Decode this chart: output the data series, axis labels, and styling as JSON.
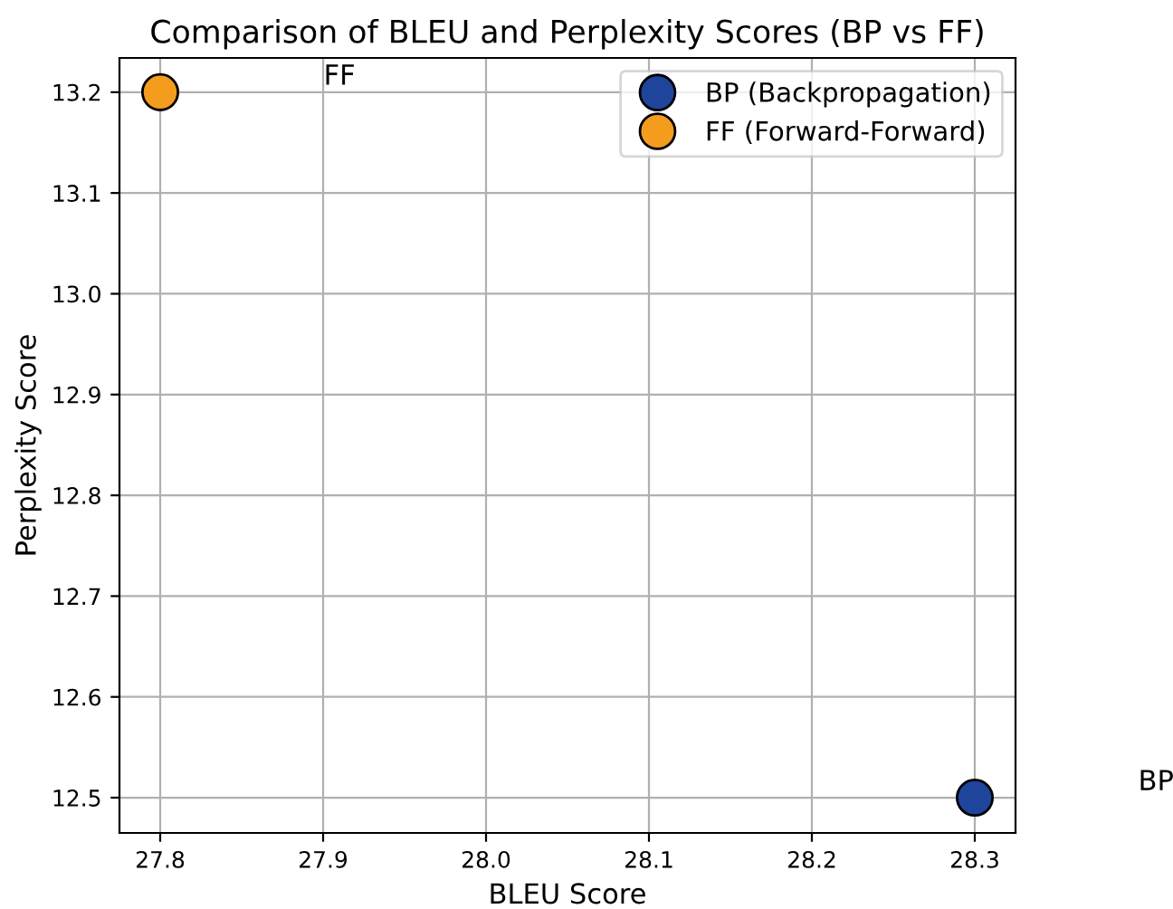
{
  "chart_data": {
    "type": "scatter",
    "title": "Comparison of BLEU and Perplexity Scores (BP vs FF)",
    "xlabel": "BLEU Score",
    "ylabel": "Perplexity Score",
    "series": [
      {
        "name": "BP (Backpropagation)",
        "color": "#1f449c",
        "x": [
          28.3
        ],
        "values": [
          12.5
        ]
      },
      {
        "name": "FF (Forward-Forward)",
        "color": "#f39c1d",
        "x": [
          27.8
        ],
        "values": [
          13.2
        ]
      }
    ],
    "annotations": [
      "BP",
      "FF"
    ],
    "xlim": [
      27.775,
      28.325
    ],
    "xticks": [
      {
        "value": 27.8,
        "label": "27.8"
      },
      {
        "value": 27.9,
        "label": "27.9"
      },
      {
        "value": 28.0,
        "label": "28.0"
      },
      {
        "value": 28.1,
        "label": "28.1"
      },
      {
        "value": 28.2,
        "label": "28.2"
      },
      {
        "value": 28.3,
        "label": "28.3"
      }
    ],
    "ylim": [
      12.465,
      13.234
    ],
    "yticks": [
      {
        "value": 12.5,
        "label": "12.5"
      },
      {
        "value": 12.6,
        "label": "12.6"
      },
      {
        "value": 12.7,
        "label": "12.7"
      },
      {
        "value": 12.8,
        "label": "12.8"
      },
      {
        "value": 12.9,
        "label": "12.9"
      },
      {
        "value": 13.0,
        "label": "13.0"
      },
      {
        "value": 13.1,
        "label": "13.1"
      },
      {
        "value": 13.2,
        "label": "13.2"
      }
    ],
    "grid": true,
    "legend": "top right",
    "marker": "circle"
  }
}
